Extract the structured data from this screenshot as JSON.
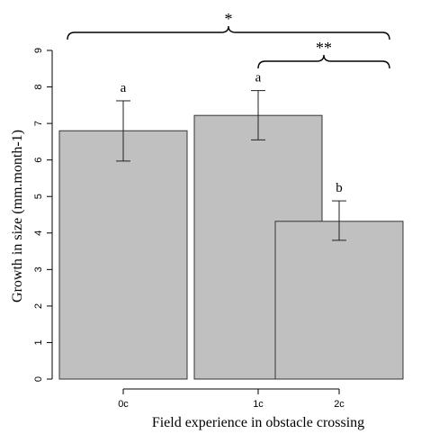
{
  "chart_data": {
    "type": "bar",
    "categories": [
      "0c",
      "1c",
      "2c"
    ],
    "values": [
      6.8,
      7.22,
      4.32
    ],
    "error_low": [
      5.97,
      6.55,
      3.8
    ],
    "error_high": [
      7.62,
      7.9,
      4.88
    ],
    "group_letters": [
      "a",
      "a",
      "b"
    ],
    "xlabel": "Field experience in obstacle crossing",
    "ylabel": "Growth in size (mm.month-1)",
    "ylim": [
      0,
      9
    ],
    "yticks": [
      0,
      1,
      2,
      3,
      4,
      5,
      6,
      7,
      8,
      9
    ],
    "grid": false,
    "bar_color": "#c0c0c0",
    "significance": [
      {
        "from": "0c",
        "to": "2c",
        "label": "*"
      },
      {
        "from": "1c",
        "to": "2c",
        "label": "**"
      }
    ]
  }
}
